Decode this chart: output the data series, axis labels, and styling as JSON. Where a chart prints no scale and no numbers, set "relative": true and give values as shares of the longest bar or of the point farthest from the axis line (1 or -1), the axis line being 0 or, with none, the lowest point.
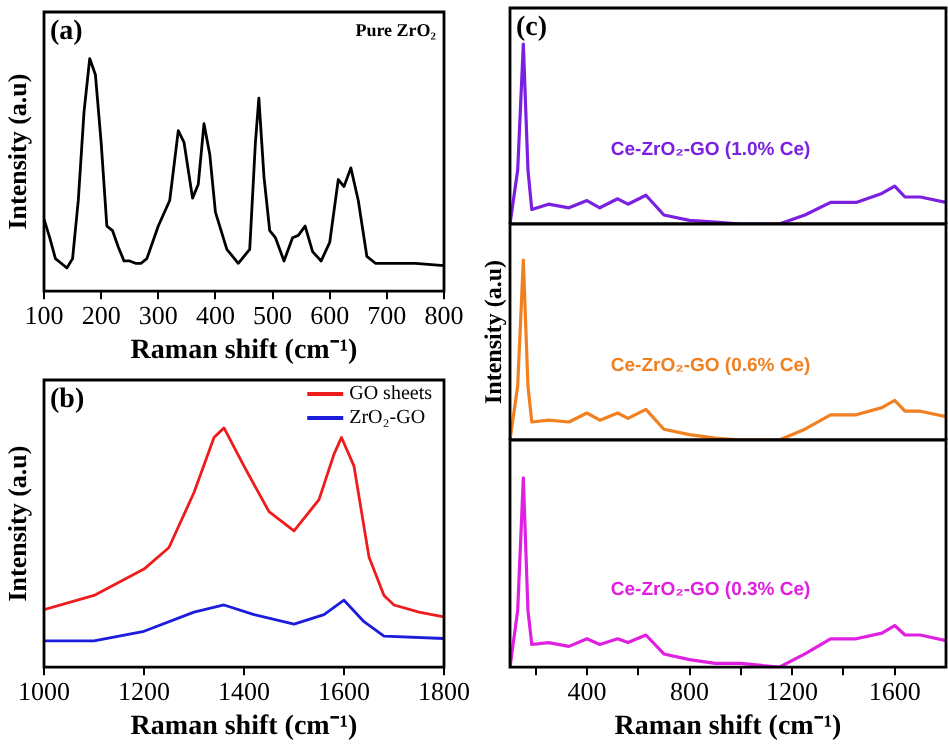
{
  "chart_data": [
    {
      "type": "line",
      "title": "(a)",
      "xlabel": "Raman shift (cm⁻¹)",
      "ylabel": "Intensity (a.u)",
      "relative": true,
      "xlim": [
        100,
        800
      ],
      "xticks": [
        100,
        200,
        300,
        400,
        500,
        600,
        700,
        800
      ],
      "annotations": [
        "Pure ZrO₂"
      ],
      "x": [
        100,
        110,
        120,
        130,
        140,
        150,
        160,
        170,
        180,
        190,
        200,
        210,
        220,
        230,
        240,
        250,
        260,
        270,
        280,
        300,
        320,
        335,
        345,
        360,
        370,
        380,
        390,
        400,
        420,
        440,
        460,
        470,
        476,
        485,
        495,
        505,
        520,
        535,
        545,
        557,
        570,
        585,
        600,
        615,
        625,
        637,
        650,
        665,
        680,
        700,
        750,
        800
      ],
      "series": [
        {
          "color": "#000000",
          "values": [
            0.31,
            0.23,
            0.14,
            0.12,
            0.1,
            0.14,
            0.39,
            0.77,
            1.0,
            0.93,
            0.64,
            0.28,
            0.26,
            0.19,
            0.13,
            0.13,
            0.12,
            0.12,
            0.14,
            0.28,
            0.39,
            0.69,
            0.64,
            0.4,
            0.46,
            0.72,
            0.59,
            0.34,
            0.18,
            0.12,
            0.18,
            0.64,
            0.83,
            0.49,
            0.26,
            0.23,
            0.13,
            0.23,
            0.24,
            0.28,
            0.17,
            0.13,
            0.21,
            0.48,
            0.45,
            0.53,
            0.39,
            0.15,
            0.12,
            0.12,
            0.12,
            0.11
          ]
        }
      ]
    },
    {
      "type": "line",
      "title": "(b)",
      "xlabel": "Raman shift (cm⁻¹)",
      "ylabel": "Intensity (a.u)",
      "relative": true,
      "xlim": [
        1000,
        1800
      ],
      "xticks": [
        1000,
        1200,
        1400,
        1600,
        1800
      ],
      "legend": "top right",
      "series": [
        {
          "name": "GO sheets",
          "color": "#ee1c1c",
          "x": [
            1000,
            1100,
            1200,
            1250,
            1300,
            1340,
            1360,
            1400,
            1450,
            1500,
            1550,
            1580,
            1595,
            1620,
            1650,
            1680,
            1700,
            1750,
            1800
          ],
          "values": [
            0.24,
            0.3,
            0.41,
            0.5,
            0.73,
            0.96,
            1.0,
            0.84,
            0.65,
            0.57,
            0.7,
            0.89,
            0.96,
            0.84,
            0.46,
            0.3,
            0.26,
            0.23,
            0.21
          ]
        },
        {
          "name": "ZrO₂-GO",
          "color": "#1c1cdc",
          "x": [
            1000,
            1100,
            1200,
            1300,
            1360,
            1420,
            1500,
            1560,
            1600,
            1640,
            1680,
            1800
          ],
          "values": [
            0.11,
            0.11,
            0.15,
            0.23,
            0.26,
            0.22,
            0.18,
            0.22,
            0.28,
            0.19,
            0.13,
            0.12
          ]
        }
      ]
    },
    {
      "type": "line",
      "title": "(c)",
      "relative": true,
      "xlim": [
        100,
        1800
      ],
      "xticks": [
        {
          "value": 200,
          "label": null
        },
        400,
        {
          "value": 600,
          "label": null
        },
        800,
        {
          "value": 1000,
          "label": null
        },
        1200,
        {
          "value": 1400,
          "label": null
        },
        1600
      ],
      "tick_labels": false,
      "x": [
        100,
        130,
        152,
        170,
        185,
        250,
        330,
        400,
        450,
        520,
        560,
        630,
        700,
        800,
        900,
        1000,
        1150,
        1250,
        1350,
        1450,
        1550,
        1600,
        1640,
        1700,
        1800
      ],
      "series": [
        {
          "name": "Ce-ZrO₂-GO (1.0% Ce)",
          "color": "#7b1fe0",
          "values": [
            0.0,
            0.3,
            1.0,
            0.3,
            0.08,
            0.11,
            0.09,
            0.13,
            0.09,
            0.14,
            0.11,
            0.16,
            0.05,
            0.02,
            0.01,
            0.0,
            0.0,
            0.05,
            0.12,
            0.12,
            0.17,
            0.21,
            0.15,
            0.15,
            0.12
          ]
        }
      ]
    },
    {
      "type": "line",
      "ylabel": "Intensity (a.u)",
      "relative": true,
      "xlim": [
        100,
        1800
      ],
      "xticks": [
        {
          "value": 200,
          "label": null
        },
        400,
        {
          "value": 600,
          "label": null
        },
        800,
        {
          "value": 1000,
          "label": null
        },
        1200,
        {
          "value": 1400,
          "label": null
        },
        1600
      ],
      "tick_labels": false,
      "x": [
        100,
        130,
        152,
        170,
        185,
        250,
        330,
        400,
        450,
        520,
        560,
        630,
        700,
        800,
        900,
        1000,
        1150,
        1250,
        1350,
        1450,
        1550,
        1600,
        1640,
        1700,
        1800
      ],
      "series": [
        {
          "name": "Ce-ZrO₂-GO (0.6% Ce)",
          "color": "#f08020",
          "values": [
            0.0,
            0.3,
            1.0,
            0.3,
            0.1,
            0.11,
            0.1,
            0.15,
            0.11,
            0.15,
            0.12,
            0.17,
            0.06,
            0.03,
            0.01,
            0.0,
            0.0,
            0.06,
            0.14,
            0.14,
            0.18,
            0.22,
            0.16,
            0.16,
            0.13
          ]
        }
      ]
    },
    {
      "type": "line",
      "xlabel": "Raman shift (cm⁻¹)",
      "relative": true,
      "xlim": [
        100,
        1800
      ],
      "xticks": [
        {
          "value": 200,
          "label": null
        },
        400,
        {
          "value": 600,
          "label": null
        },
        800,
        {
          "value": 1000,
          "label": null
        },
        1200,
        {
          "value": 1400,
          "label": null
        },
        1600
      ],
      "tick_labels": "x",
      "x": [
        100,
        130,
        152,
        170,
        185,
        250,
        330,
        400,
        450,
        520,
        560,
        630,
        700,
        800,
        900,
        1000,
        1150,
        1250,
        1350,
        1450,
        1550,
        1600,
        1640,
        1700,
        1800
      ],
      "series": [
        {
          "name": "Ce-ZrO₂-GO (0.3% Ce)",
          "color": "#e020e0",
          "values": [
            0.0,
            0.3,
            1.0,
            0.3,
            0.12,
            0.13,
            0.11,
            0.15,
            0.12,
            0.15,
            0.13,
            0.17,
            0.07,
            0.04,
            0.02,
            0.02,
            0.0,
            0.07,
            0.15,
            0.15,
            0.18,
            0.22,
            0.17,
            0.17,
            0.14
          ]
        }
      ]
    }
  ]
}
